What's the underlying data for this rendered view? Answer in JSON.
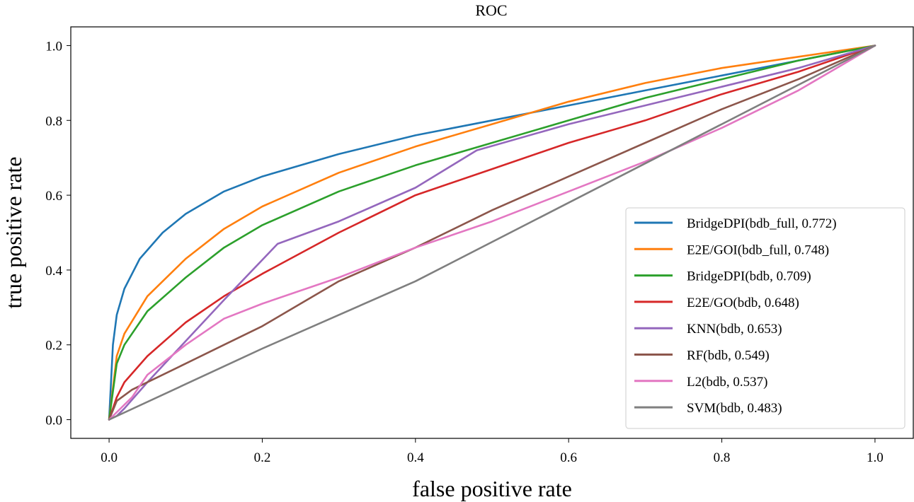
{
  "chart_data": {
    "type": "line",
    "title": "ROC",
    "xlabel": "false positive rate",
    "ylabel": "true positive rate",
    "xlim": [
      -0.05,
      1.05
    ],
    "ylim": [
      -0.05,
      1.05
    ],
    "xticks": [
      0.0,
      0.2,
      0.4,
      0.6,
      0.8,
      1.0
    ],
    "xtick_labels": [
      "0.0",
      "0.2",
      "0.4",
      "0.6",
      "0.8",
      "1.0"
    ],
    "yticks": [
      0.0,
      0.2,
      0.4,
      0.6,
      0.8,
      1.0
    ],
    "ytick_labels": [
      "0.0",
      "0.2",
      "0.4",
      "0.6",
      "0.8",
      "1.0"
    ],
    "grid": false,
    "legend_position": "lower right",
    "series": [
      {
        "name": "BridgeDPI(bdb_full, 0.772)",
        "color": "#1f77b4",
        "x": [
          0,
          0.005,
          0.01,
          0.02,
          0.04,
          0.07,
          0.1,
          0.15,
          0.2,
          0.3,
          0.4,
          0.5,
          0.6,
          0.7,
          0.8,
          0.9,
          1.0
        ],
        "y": [
          0,
          0.2,
          0.28,
          0.35,
          0.43,
          0.5,
          0.55,
          0.61,
          0.65,
          0.71,
          0.76,
          0.8,
          0.84,
          0.88,
          0.92,
          0.96,
          1.0
        ]
      },
      {
        "name": "E2E/GOI(bdb_full, 0.748)",
        "color": "#ff7f0e",
        "x": [
          0,
          0.01,
          0.02,
          0.05,
          0.1,
          0.15,
          0.2,
          0.3,
          0.4,
          0.5,
          0.6,
          0.7,
          0.8,
          0.9,
          1.0
        ],
        "y": [
          0,
          0.17,
          0.23,
          0.33,
          0.43,
          0.51,
          0.57,
          0.66,
          0.73,
          0.79,
          0.85,
          0.9,
          0.94,
          0.97,
          1.0
        ]
      },
      {
        "name": "BridgeDPI(bdb, 0.709)",
        "color": "#2ca02c",
        "x": [
          0,
          0.01,
          0.02,
          0.05,
          0.1,
          0.15,
          0.2,
          0.3,
          0.4,
          0.5,
          0.6,
          0.7,
          0.8,
          0.9,
          1.0
        ],
        "y": [
          0,
          0.15,
          0.2,
          0.29,
          0.38,
          0.46,
          0.52,
          0.61,
          0.68,
          0.74,
          0.8,
          0.86,
          0.91,
          0.96,
          1.0
        ]
      },
      {
        "name": "E2E/GO(bdb, 0.648)",
        "color": "#d62728",
        "x": [
          0,
          0.01,
          0.02,
          0.05,
          0.1,
          0.15,
          0.2,
          0.3,
          0.4,
          0.5,
          0.6,
          0.7,
          0.8,
          0.9,
          1.0
        ],
        "y": [
          0,
          0.06,
          0.1,
          0.17,
          0.26,
          0.33,
          0.39,
          0.5,
          0.6,
          0.67,
          0.74,
          0.8,
          0.87,
          0.93,
          1.0
        ]
      },
      {
        "name": "KNN(bdb, 0.653)",
        "color": "#9467bd",
        "x": [
          0,
          0.01,
          0.02,
          0.05,
          0.1,
          0.15,
          0.22,
          0.3,
          0.4,
          0.48,
          0.6,
          0.7,
          0.8,
          0.9,
          1.0
        ],
        "y": [
          0,
          0.01,
          0.03,
          0.1,
          0.21,
          0.32,
          0.47,
          0.53,
          0.62,
          0.72,
          0.79,
          0.84,
          0.89,
          0.94,
          1.0
        ]
      },
      {
        "name": "RF(bdb, 0.549)",
        "color": "#8c564b",
        "x": [
          0,
          0.01,
          0.03,
          0.05,
          0.1,
          0.15,
          0.2,
          0.25,
          0.3,
          0.4,
          0.5,
          0.6,
          0.7,
          0.8,
          0.9,
          1.0
        ],
        "y": [
          0,
          0.05,
          0.08,
          0.1,
          0.15,
          0.2,
          0.25,
          0.31,
          0.37,
          0.46,
          0.56,
          0.65,
          0.74,
          0.83,
          0.91,
          1.0
        ]
      },
      {
        "name": "L2(bdb, 0.537)",
        "color": "#e377c2",
        "x": [
          0,
          0.01,
          0.03,
          0.05,
          0.1,
          0.15,
          0.2,
          0.3,
          0.4,
          0.5,
          0.6,
          0.7,
          0.8,
          0.9,
          0.95,
          1.0
        ],
        "y": [
          0,
          0.02,
          0.06,
          0.12,
          0.2,
          0.27,
          0.31,
          0.38,
          0.46,
          0.53,
          0.61,
          0.69,
          0.78,
          0.88,
          0.94,
          1.0
        ]
      },
      {
        "name": "SVM(bdb, 0.483)",
        "color": "#7f7f7f",
        "x": [
          0,
          0.2,
          0.4,
          0.6,
          0.8,
          1.0
        ],
        "y": [
          0,
          0.19,
          0.37,
          0.58,
          0.79,
          1.0
        ]
      }
    ]
  }
}
